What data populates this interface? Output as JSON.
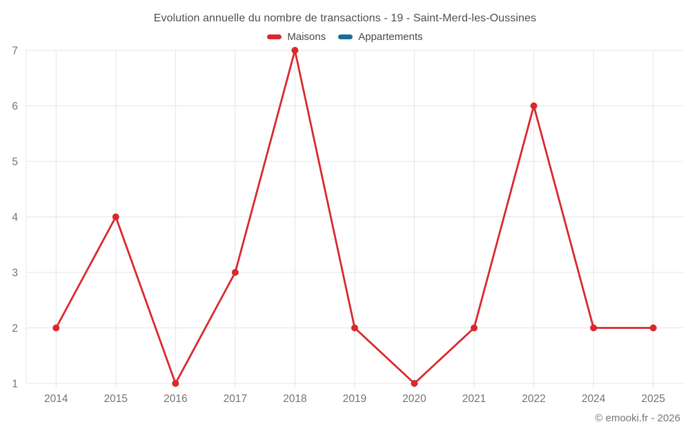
{
  "title": "Evolution annuelle du nombre de transactions - 19 - Saint-Merd-les-Oussines",
  "legend": {
    "items": [
      {
        "label": "Maisons",
        "color": "#d9282e"
      },
      {
        "label": "Appartements",
        "color": "#1b6d9c"
      }
    ]
  },
  "footer": "© emooki.fr - 2026",
  "colors": {
    "grid": "#e4e4e4",
    "axis_text": "#737373",
    "title_text": "#4f4f4f",
    "maisons": "#d9282e",
    "appartements": "#1b6d9c"
  },
  "chart_data": {
    "type": "line",
    "title": "Evolution annuelle du nombre de transactions - 19 - Saint-Merd-les-Oussines",
    "categories": [
      "2014",
      "2015",
      "2016",
      "2017",
      "2018",
      "2019",
      "2020",
      "2021",
      "2022",
      "2024",
      "2025"
    ],
    "series": [
      {
        "name": "Maisons",
        "color": "#d9282e",
        "values": [
          2,
          4,
          1,
          3,
          7,
          2,
          1,
          2,
          6,
          2,
          2
        ]
      },
      {
        "name": "Appartements",
        "color": "#1b6d9c",
        "values": []
      }
    ],
    "xlabel": "",
    "ylabel": "",
    "ylim": [
      1,
      7
    ],
    "yticks": [
      1,
      2,
      3,
      4,
      5,
      6,
      7
    ],
    "grid": true,
    "legend_position": "top"
  }
}
